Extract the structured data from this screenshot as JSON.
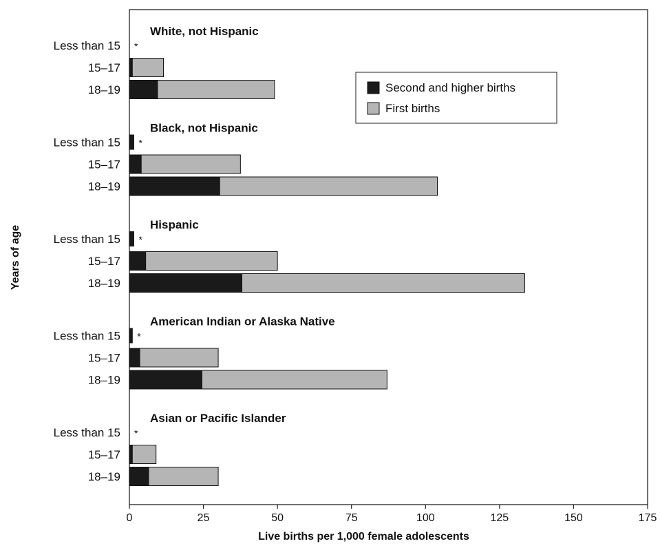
{
  "chart_data": {
    "type": "bar",
    "orientation": "horizontal",
    "stacked": true,
    "ylabel": "Years of age",
    "xlabel": "Live births per 1,000 female adolescents",
    "xlim": [
      0,
      175
    ],
    "xticks": [
      "0",
      "25",
      "50",
      "75",
      "100",
      "125",
      "150",
      "175"
    ],
    "xtick_values": [
      0,
      25,
      50,
      75,
      100,
      125,
      150,
      175
    ],
    "legend": [
      {
        "name": "Second and higher births",
        "color": "#1a1a1a"
      },
      {
        "name": "First births",
        "color": "#b5b5b5"
      }
    ],
    "legend_position": "top-right",
    "marker": "*",
    "groups": [
      {
        "name": "White, not Hispanic",
        "rows": [
          {
            "age": "Less than 15",
            "second": 0,
            "first": 0,
            "star": true
          },
          {
            "age": "15–17",
            "second": 1,
            "first": 10.5,
            "star": false
          },
          {
            "age": "18–19",
            "second": 9.5,
            "first": 39.5,
            "star": false
          }
        ]
      },
      {
        "name": "Black, not Hispanic",
        "rows": [
          {
            "age": "Less than 15",
            "second": 1.5,
            "first": 0,
            "star": true
          },
          {
            "age": "15–17",
            "second": 4,
            "first": 33.5,
            "star": false
          },
          {
            "age": "18–19",
            "second": 30.5,
            "first": 73.5,
            "star": false
          }
        ]
      },
      {
        "name": "Hispanic",
        "rows": [
          {
            "age": "Less than 15",
            "second": 1.5,
            "first": 0,
            "star": true
          },
          {
            "age": "15–17",
            "second": 5.5,
            "first": 44.5,
            "star": false
          },
          {
            "age": "18–19",
            "second": 38,
            "first": 95.5,
            "star": false
          }
        ]
      },
      {
        "name": "American Indian or Alaska Native",
        "rows": [
          {
            "age": "Less than 15",
            "second": 1,
            "first": 0,
            "star": true
          },
          {
            "age": "15–17",
            "second": 3.5,
            "first": 26.5,
            "star": false
          },
          {
            "age": "18–19",
            "second": 24.5,
            "first": 62.5,
            "star": false
          }
        ]
      },
      {
        "name": "Asian or Pacific Islander",
        "rows": [
          {
            "age": "Less than 15",
            "second": 0,
            "first": 0,
            "star": true
          },
          {
            "age": "15–17",
            "second": 1,
            "first": 8,
            "star": false
          },
          {
            "age": "18–19",
            "second": 6.5,
            "first": 23.5,
            "star": false
          }
        ]
      }
    ],
    "grid": false
  }
}
